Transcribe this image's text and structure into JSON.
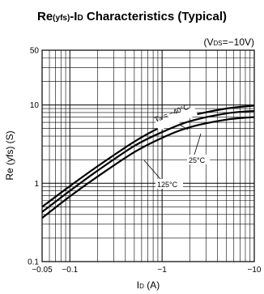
{
  "chart_data": {
    "type": "line",
    "title": {
      "main": "Re",
      "main_sub": "(yfs)",
      "sep": "-I",
      "sep_sub": "D",
      "rest": " Characteristics (Typical)"
    },
    "condition": {
      "open": "(V",
      "sub": "DS",
      "rest": "=−10V)"
    },
    "xlabel": {
      "main": "I",
      "sub": "D",
      "rest": " (A)"
    },
    "ylabel": "Re  (yfs) (S)",
    "x_scale": "log",
    "y_scale": "log",
    "x_magnitude_range": [
      0.05,
      10
    ],
    "ylim": [
      0.1,
      50
    ],
    "x_tick_labels": [
      {
        "value": 0.05,
        "label": "−0.05"
      },
      {
        "value": 0.1,
        "label": "−0.1"
      },
      {
        "value": 1,
        "label": "−1"
      },
      {
        "value": 10,
        "label": "−10"
      }
    ],
    "y_tick_labels": [
      {
        "value": 0.1,
        "label": "0.1"
      },
      {
        "value": 1,
        "label": "1"
      },
      {
        "value": 10,
        "label": "10"
      },
      {
        "value": 50,
        "label": "50"
      }
    ],
    "grid": true,
    "series": [
      {
        "name": "Ta = −40°C",
        "x": [
          -0.05,
          -0.1,
          -0.2,
          -0.5,
          -1,
          -2,
          -5,
          -10
        ],
        "y": [
          0.5,
          0.92,
          1.65,
          3.4,
          5.3,
          7.2,
          9.0,
          9.8
        ]
      },
      {
        "name": "25°C",
        "x": [
          -0.05,
          -0.1,
          -0.2,
          -0.5,
          -1,
          -2,
          -5,
          -10
        ],
        "y": [
          0.43,
          0.8,
          1.45,
          3.0,
          4.5,
          6.2,
          7.8,
          8.4
        ]
      },
      {
        "name": "125°C",
        "x": [
          -0.05,
          -0.1,
          -0.2,
          -0.5,
          -1,
          -2,
          -5,
          -10
        ],
        "y": [
          0.36,
          0.68,
          1.22,
          2.5,
          3.8,
          5.2,
          6.5,
          7.0
        ]
      }
    ],
    "annotations": {
      "ta_prefix": "T",
      "ta_sub": "a",
      "ta_rest": " = −40°C",
      "t25": "25°C",
      "t125": "125°C"
    }
  }
}
